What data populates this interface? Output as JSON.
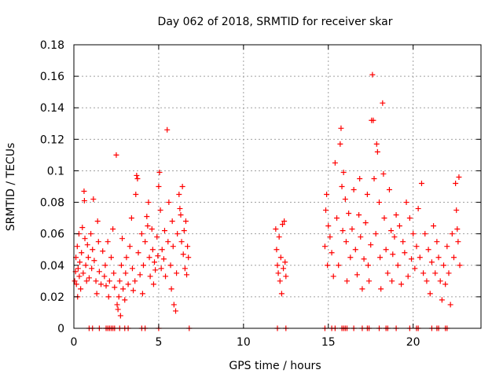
{
  "chart_data": {
    "type": "scatter",
    "title": "Day 062 of 2018, SRMTID for receiver skar",
    "xlabel": "GPS time / hours",
    "ylabel": "SRMTID / TECUs",
    "xlim": [
      0,
      24
    ],
    "ylim": [
      0,
      0.18
    ],
    "x_ticks": [
      0,
      5,
      10,
      15,
      20
    ],
    "x_tick_labels": [
      "0",
      "5",
      "10",
      "15",
      "20"
    ],
    "y_ticks": [
      0,
      0.02,
      0.04,
      0.06,
      0.08,
      0.1,
      0.12,
      0.14,
      0.16,
      0.18
    ],
    "y_tick_labels": [
      "0",
      "0.02",
      "0.04",
      "0.06",
      "0.08",
      "0.1",
      "0.12",
      "0.14",
      "0.16",
      "0.18"
    ],
    "grid": true,
    "marker": "+",
    "color": "#ff0000",
    "series": [
      {
        "points": [
          [
            0.05,
            0.03
          ],
          [
            0.1,
            0.036
          ],
          [
            0.12,
            0.045
          ],
          [
            0.15,
            0.028
          ],
          [
            0.2,
            0.052
          ],
          [
            0.22,
            0.02
          ],
          [
            0.25,
            0.038
          ],
          [
            0.3,
            0.06
          ],
          [
            0.32,
            0.033
          ],
          [
            0.35,
            0.042
          ],
          [
            0.4,
            0.025
          ],
          [
            0.45,
            0.048
          ],
          [
            0.5,
            0.064
          ],
          [
            0.55,
            0.035
          ],
          [
            0.6,
            0.087
          ],
          [
            0.62,
            0.081
          ],
          [
            0.65,
            0.057
          ],
          [
            0.7,
            0.04
          ],
          [
            0.75,
            0.03
          ],
          [
            0.8,
            0.053
          ],
          [
            0.85,
            0.045
          ],
          [
            0.9,
            0.032
          ],
          [
            1.0,
            0.06
          ],
          [
            1.05,
            0.038
          ],
          [
            1.1,
            0.05
          ],
          [
            1.15,
            0.082
          ],
          [
            1.2,
            0.043
          ],
          [
            1.3,
            0.03
          ],
          [
            1.35,
            0.022
          ],
          [
            1.4,
            0.068
          ],
          [
            1.45,
            0.055
          ],
          [
            1.5,
            0.036
          ],
          [
            1.6,
            0.028
          ],
          [
            1.7,
            0.049
          ],
          [
            1.8,
            0.033
          ],
          [
            1.85,
            0.04
          ],
          [
            1.9,
            0.027
          ],
          [
            2.0,
            0.055
          ],
          [
            2.05,
            0.02
          ],
          [
            2.1,
            0.03
          ],
          [
            2.2,
            0.045
          ],
          [
            2.3,
            0.063
          ],
          [
            2.35,
            0.035
          ],
          [
            2.4,
            0.026
          ],
          [
            2.5,
            0.11
          ],
          [
            2.55,
            0.015
          ],
          [
            2.6,
            0.012
          ],
          [
            2.65,
            0.02
          ],
          [
            2.7,
            0.03
          ],
          [
            2.75,
            0.008
          ],
          [
            2.8,
            0.04
          ],
          [
            2.85,
            0.057
          ],
          [
            2.9,
            0.025
          ],
          [
            3.0,
            0.018
          ],
          [
            3.05,
            0.035
          ],
          [
            3.1,
            0.045
          ],
          [
            3.2,
            0.028
          ],
          [
            3.3,
            0.052
          ],
          [
            3.4,
            0.07
          ],
          [
            3.45,
            0.038
          ],
          [
            3.5,
            0.024
          ],
          [
            3.6,
            0.03
          ],
          [
            3.65,
            0.085
          ],
          [
            3.7,
            0.097
          ],
          [
            3.75,
            0.095
          ],
          [
            3.8,
            0.048
          ],
          [
            3.9,
            0.034
          ],
          [
            4.0,
            0.06
          ],
          [
            4.05,
            0.022
          ],
          [
            4.1,
            0.04
          ],
          [
            4.2,
            0.055
          ],
          [
            4.3,
            0.071
          ],
          [
            4.35,
            0.065
          ],
          [
            4.4,
            0.08
          ],
          [
            4.45,
            0.045
          ],
          [
            4.5,
            0.033
          ],
          [
            4.6,
            0.063
          ],
          [
            4.65,
            0.05
          ],
          [
            4.7,
            0.028
          ],
          [
            4.75,
            0.042
          ],
          [
            4.8,
            0.037
          ],
          [
            4.9,
            0.058
          ],
          [
            4.95,
            0.046
          ],
          [
            5.0,
            0.09
          ],
          [
            5.05,
            0.099
          ],
          [
            5.1,
            0.075
          ],
          [
            5.15,
            0.038
          ],
          [
            5.2,
            0.05
          ],
          [
            5.3,
            0.044
          ],
          [
            5.35,
            0.062
          ],
          [
            5.4,
            0.033
          ],
          [
            5.5,
            0.126
          ],
          [
            5.55,
            0.055
          ],
          [
            5.6,
            0.08
          ],
          [
            5.7,
            0.04
          ],
          [
            5.75,
            0.025
          ],
          [
            5.8,
            0.068
          ],
          [
            5.85,
            0.052
          ],
          [
            5.9,
            0.015
          ],
          [
            6.0,
            0.011
          ],
          [
            6.05,
            0.035
          ],
          [
            6.1,
            0.06
          ],
          [
            6.2,
            0.085
          ],
          [
            6.25,
            0.076
          ],
          [
            6.3,
            0.072
          ],
          [
            6.35,
            0.055
          ],
          [
            6.4,
            0.09
          ],
          [
            6.45,
            0.047
          ],
          [
            6.5,
            0.062
          ],
          [
            6.55,
            0.038
          ],
          [
            6.6,
            0.068
          ],
          [
            6.65,
            0.034
          ],
          [
            6.7,
            0.052
          ],
          [
            6.75,
            0.045
          ],
          [
            11.9,
            0.063
          ],
          [
            11.95,
            0.05
          ],
          [
            12.0,
            0.04
          ],
          [
            12.05,
            0.035
          ],
          [
            12.1,
            0.058
          ],
          [
            12.15,
            0.03
          ],
          [
            12.2,
            0.045
          ],
          [
            12.25,
            0.022
          ],
          [
            12.3,
            0.066
          ],
          [
            12.35,
            0.038
          ],
          [
            12.4,
            0.068
          ],
          [
            12.45,
            0.042
          ],
          [
            12.5,
            0.033
          ],
          [
            14.8,
            0.052
          ],
          [
            14.85,
            0.075
          ],
          [
            14.9,
            0.085
          ],
          [
            14.95,
            0.04
          ],
          [
            15.0,
            0.065
          ],
          [
            15.1,
            0.058
          ],
          [
            15.2,
            0.048
          ],
          [
            15.3,
            0.033
          ],
          [
            15.4,
            0.105
          ],
          [
            15.5,
            0.07
          ],
          [
            15.6,
            0.04
          ],
          [
            15.7,
            0.117
          ],
          [
            15.75,
            0.127
          ],
          [
            15.8,
            0.09
          ],
          [
            15.85,
            0.062
          ],
          [
            15.9,
            0.099
          ],
          [
            16.0,
            0.082
          ],
          [
            16.05,
            0.055
          ],
          [
            16.1,
            0.03
          ],
          [
            16.2,
            0.073
          ],
          [
            16.3,
            0.045
          ],
          [
            16.4,
            0.063
          ],
          [
            16.5,
            0.088
          ],
          [
            16.6,
            0.05
          ],
          [
            16.7,
            0.034
          ],
          [
            16.8,
            0.072
          ],
          [
            16.85,
            0.095
          ],
          [
            16.9,
            0.058
          ],
          [
            17.0,
            0.025
          ],
          [
            17.1,
            0.044
          ],
          [
            17.2,
            0.067
          ],
          [
            17.3,
            0.085
          ],
          [
            17.35,
            0.04
          ],
          [
            17.4,
            0.03
          ],
          [
            17.5,
            0.053
          ],
          [
            17.55,
            0.132
          ],
          [
            17.6,
            0.161
          ],
          [
            17.65,
            0.132
          ],
          [
            17.7,
            0.095
          ],
          [
            17.8,
            0.06
          ],
          [
            17.85,
            0.117
          ],
          [
            17.9,
            0.112
          ],
          [
            18.0,
            0.08
          ],
          [
            18.05,
            0.045
          ],
          [
            18.1,
            0.025
          ],
          [
            18.2,
            0.143
          ],
          [
            18.25,
            0.098
          ],
          [
            18.3,
            0.07
          ],
          [
            18.4,
            0.05
          ],
          [
            18.5,
            0.035
          ],
          [
            18.6,
            0.088
          ],
          [
            18.7,
            0.062
          ],
          [
            18.75,
            0.03
          ],
          [
            18.8,
            0.047
          ],
          [
            18.9,
            0.058
          ],
          [
            19.0,
            0.072
          ],
          [
            19.1,
            0.04
          ],
          [
            19.2,
            0.065
          ],
          [
            19.3,
            0.028
          ],
          [
            19.4,
            0.055
          ],
          [
            19.5,
            0.048
          ],
          [
            19.6,
            0.08
          ],
          [
            19.7,
            0.033
          ],
          [
            19.8,
            0.07
          ],
          [
            19.9,
            0.044
          ],
          [
            20.0,
            0.06
          ],
          [
            20.1,
            0.038
          ],
          [
            20.2,
            0.052
          ],
          [
            20.3,
            0.076
          ],
          [
            20.4,
            0.045
          ],
          [
            20.5,
            0.092
          ],
          [
            20.6,
            0.035
          ],
          [
            20.7,
            0.06
          ],
          [
            20.8,
            0.03
          ],
          [
            20.9,
            0.05
          ],
          [
            21.0,
            0.022
          ],
          [
            21.1,
            0.042
          ],
          [
            21.2,
            0.065
          ],
          [
            21.3,
            0.035
          ],
          [
            21.4,
            0.055
          ],
          [
            21.5,
            0.045
          ],
          [
            21.6,
            0.03
          ],
          [
            21.7,
            0.018
          ],
          [
            21.8,
            0.04
          ],
          [
            21.9,
            0.028
          ],
          [
            22.0,
            0.052
          ],
          [
            22.1,
            0.035
          ],
          [
            22.2,
            0.015
          ],
          [
            22.3,
            0.06
          ],
          [
            22.4,
            0.045
          ],
          [
            22.5,
            0.092
          ],
          [
            22.55,
            0.075
          ],
          [
            22.6,
            0.063
          ],
          [
            22.65,
            0.055
          ],
          [
            22.7,
            0.096
          ],
          [
            22.75,
            0.04
          ]
        ]
      },
      {
        "points": [
          [
            0.9,
            0
          ],
          [
            1.1,
            0
          ],
          [
            1.5,
            0
          ],
          [
            1.9,
            0
          ],
          [
            2.0,
            0
          ],
          [
            2.1,
            0
          ],
          [
            2.2,
            0
          ],
          [
            2.3,
            0
          ],
          [
            2.4,
            0
          ],
          [
            2.7,
            0
          ],
          [
            3.0,
            0
          ],
          [
            3.2,
            0
          ],
          [
            4.0,
            0
          ],
          [
            4.2,
            0
          ],
          [
            5.0,
            0
          ],
          [
            6.8,
            0
          ],
          [
            12.0,
            0
          ],
          [
            12.5,
            0
          ],
          [
            14.8,
            0
          ],
          [
            15.2,
            0
          ],
          [
            15.4,
            0
          ],
          [
            15.8,
            0
          ],
          [
            15.9,
            0
          ],
          [
            16.0,
            0
          ],
          [
            16.1,
            0
          ],
          [
            16.5,
            0
          ],
          [
            17.0,
            0
          ],
          [
            17.3,
            0
          ],
          [
            17.4,
            0
          ],
          [
            18.0,
            0
          ],
          [
            18.4,
            0
          ],
          [
            18.5,
            0
          ],
          [
            19.0,
            0
          ],
          [
            19.8,
            0
          ],
          [
            20.2,
            0
          ],
          [
            20.3,
            0
          ],
          [
            21.1,
            0
          ],
          [
            21.4,
            0
          ],
          [
            21.5,
            0
          ],
          [
            21.9,
            0
          ],
          [
            22.0,
            0
          ]
        ]
      }
    ]
  }
}
